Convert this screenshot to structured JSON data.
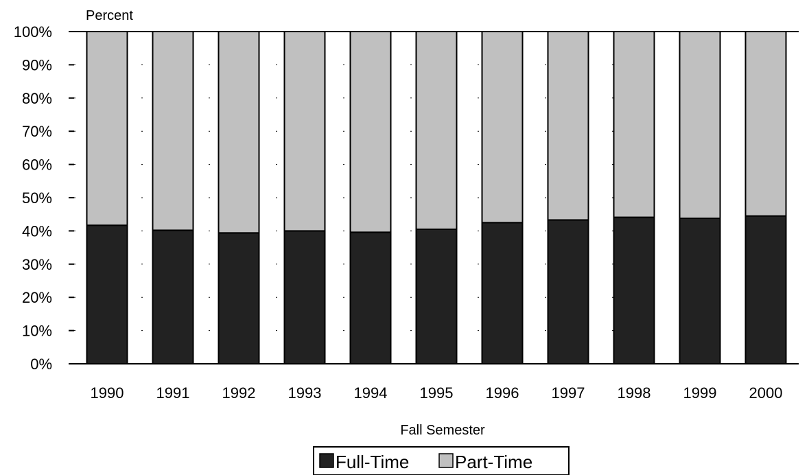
{
  "chart_data": {
    "type": "bar",
    "stacked": true,
    "title": "",
    "xlabel": "Fall Semester",
    "ylabel": "Percent",
    "ylim": [
      0,
      100
    ],
    "y_ticks": [
      "0%",
      "10%",
      "20%",
      "30%",
      "40%",
      "50%",
      "60%",
      "70%",
      "80%",
      "90%",
      "100%"
    ],
    "categories": [
      "1990",
      "1991",
      "1992",
      "1993",
      "1994",
      "1995",
      "1996",
      "1997",
      "1998",
      "1999",
      "2000"
    ],
    "series": [
      {
        "name": "Full-Time",
        "color": "#222222",
        "values": [
          41.7,
          40.2,
          39.4,
          40.0,
          39.6,
          40.5,
          42.5,
          43.3,
          44.1,
          43.8,
          44.5
        ]
      },
      {
        "name": "Part-Time",
        "color": "#c0c0c0",
        "values": [
          58.3,
          59.8,
          60.6,
          60.0,
          60.4,
          59.5,
          57.5,
          56.7,
          55.9,
          56.2,
          55.5
        ]
      }
    ],
    "grid": true,
    "legend_position": "bottom-center"
  }
}
